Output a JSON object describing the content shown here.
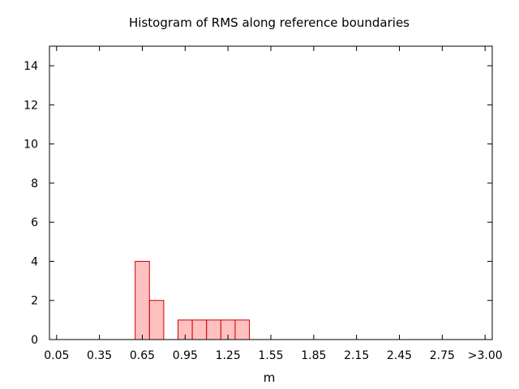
{
  "chart_data": {
    "type": "bar",
    "title": "Histogram of RMS along reference boundaries",
    "xlabel": "m",
    "ylabel": "",
    "x_tick_labels": [
      "0.05",
      "0.35",
      "0.65",
      "0.95",
      "1.25",
      "1.55",
      "1.85",
      "2.15",
      "2.45",
      "2.75",
      ">3.00"
    ],
    "x_tick_values": [
      0.05,
      0.35,
      0.65,
      0.95,
      1.25,
      1.55,
      1.85,
      2.15,
      2.45,
      2.75,
      3.05
    ],
    "y_tick_labels": [
      "0",
      "2",
      "4",
      "6",
      "8",
      "10",
      "12",
      "14"
    ],
    "y_tick_values": [
      0,
      2,
      4,
      6,
      8,
      10,
      12,
      14
    ],
    "xlim": [
      0.0,
      3.1
    ],
    "ylim": [
      0,
      15
    ],
    "bin_width": 0.1,
    "categories": [
      "0.65",
      "0.75",
      "0.95",
      "1.05",
      "1.15",
      "1.25",
      "1.35"
    ],
    "values": [
      4,
      2,
      1,
      1,
      1,
      1,
      1
    ],
    "grid": false,
    "colors": {
      "bar_fill": "#ffc0c0",
      "bar_stroke": "#cc0000",
      "axis": "#000000"
    }
  }
}
